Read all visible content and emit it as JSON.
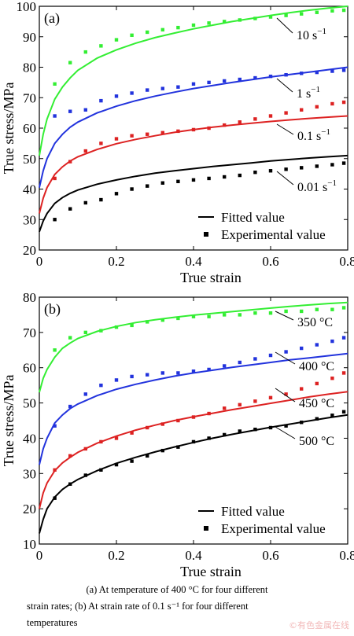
{
  "chart_data": [
    {
      "type": "line",
      "panel_label": "(a)",
      "xlabel": "True strain",
      "ylabel": "True stress/MPa",
      "xlim": [
        0,
        0.8
      ],
      "ylim": [
        20,
        100
      ],
      "xticks": [
        0,
        0.2,
        0.4,
        0.6,
        0.8
      ],
      "xtick_labels": [
        "0",
        "0.2",
        "0.4",
        "0.6",
        "0.8"
      ],
      "yticks": [
        20,
        30,
        40,
        50,
        60,
        70,
        80,
        90,
        100
      ],
      "ytick_labels": [
        "20",
        "30",
        "40",
        "50",
        "60",
        "70",
        "80",
        "90",
        "100"
      ],
      "legend": {
        "position": "bottom-right",
        "fitted_label": "Fitted value",
        "experimental_label": "Experimental value"
      },
      "exp_x": [
        0.04,
        0.08,
        0.12,
        0.16,
        0.2,
        0.24,
        0.28,
        0.32,
        0.36,
        0.4,
        0.44,
        0.48,
        0.52,
        0.56,
        0.6,
        0.64,
        0.68,
        0.72,
        0.76,
        0.79
      ],
      "series": [
        {
          "label": "10 s⁻¹",
          "color": "#33ee33",
          "fit_x": [
            0,
            0.01,
            0.02,
            0.04,
            0.06,
            0.08,
            0.1,
            0.15,
            0.2,
            0.25,
            0.3,
            0.35,
            0.4,
            0.45,
            0.5,
            0.55,
            0.6,
            0.65,
            0.7,
            0.75,
            0.8
          ],
          "fit_y": [
            51,
            58,
            63,
            69.5,
            73.5,
            76.5,
            79,
            83,
            85.7,
            87.9,
            89.7,
            91.2,
            92.6,
            93.8,
            95,
            96,
            97,
            97.9,
            98.7,
            99.4,
            100
          ],
          "exp_y": [
            74.5,
            81.5,
            85,
            87,
            89,
            90.5,
            91.5,
            92.3,
            93,
            93.8,
            94.5,
            95,
            95.5,
            96,
            96.5,
            97,
            97.5,
            98,
            98.5,
            98.7
          ]
        },
        {
          "label": "1 s⁻¹",
          "color": "#2233dd",
          "fit_x": [
            0,
            0.01,
            0.02,
            0.04,
            0.06,
            0.08,
            0.1,
            0.15,
            0.2,
            0.25,
            0.3,
            0.35,
            0.4,
            0.45,
            0.5,
            0.55,
            0.6,
            0.65,
            0.7,
            0.75,
            0.8
          ],
          "fit_y": [
            40.5,
            46,
            50,
            55,
            58,
            60.3,
            62,
            65,
            67.2,
            69,
            70.5,
            71.8,
            73,
            74,
            75,
            75.9,
            76.8,
            77.6,
            78.4,
            79.2,
            80
          ],
          "exp_y": [
            64,
            65.5,
            66,
            69,
            70.5,
            71.5,
            72.5,
            73,
            73.5,
            74.5,
            75,
            75.5,
            76,
            76.5,
            77,
            77.5,
            78,
            78.3,
            78.7,
            79
          ]
        },
        {
          "label": "0.1 s⁻¹",
          "color": "#dd2222",
          "fit_x": [
            0,
            0.01,
            0.02,
            0.04,
            0.06,
            0.08,
            0.1,
            0.15,
            0.2,
            0.25,
            0.3,
            0.35,
            0.4,
            0.45,
            0.5,
            0.55,
            0.6,
            0.65,
            0.7,
            0.75,
            0.8
          ],
          "fit_y": [
            32,
            37,
            40.5,
            44.8,
            47.3,
            49.2,
            50.6,
            53,
            54.9,
            56.3,
            57.5,
            58.6,
            59.5,
            60.3,
            61,
            61.6,
            62.2,
            62.7,
            63.2,
            63.6,
            64
          ],
          "exp_y": [
            43.5,
            49,
            52.5,
            55,
            56.5,
            57.5,
            58,
            58.5,
            59,
            59.5,
            60,
            61,
            62,
            63,
            64,
            65,
            66,
            67,
            68,
            68.5
          ]
        },
        {
          "label": "0.01 s⁻¹",
          "color": "#000000",
          "fit_x": [
            0,
            0.01,
            0.02,
            0.04,
            0.06,
            0.08,
            0.1,
            0.15,
            0.2,
            0.25,
            0.3,
            0.35,
            0.4,
            0.45,
            0.5,
            0.55,
            0.6,
            0.65,
            0.7,
            0.75,
            0.8
          ],
          "fit_y": [
            26,
            29.5,
            32,
            35.3,
            37.2,
            38.6,
            39.7,
            41.6,
            43,
            44.2,
            45.2,
            46,
            46.7,
            47.4,
            48,
            48.6,
            49.2,
            49.7,
            50.2,
            50.6,
            51
          ],
          "exp_y": [
            30,
            33.5,
            35.5,
            36.5,
            38.5,
            40,
            41,
            42,
            42.5,
            43,
            43.5,
            44,
            44.5,
            45.5,
            46,
            46.5,
            47,
            47.5,
            48,
            48.5
          ]
        }
      ]
    },
    {
      "type": "line",
      "panel_label": "(b)",
      "xlabel": "True strain",
      "ylabel": "True stress/MPa",
      "xlim": [
        0,
        0.8
      ],
      "ylim": [
        10,
        80
      ],
      "xticks": [
        0,
        0.2,
        0.4,
        0.6,
        0.8
      ],
      "xtick_labels": [
        "0",
        "0.2",
        "0.4",
        "0.6",
        "0.8"
      ],
      "yticks": [
        10,
        20,
        30,
        40,
        50,
        60,
        70,
        80
      ],
      "ytick_labels": [
        "10",
        "20",
        "30",
        "40",
        "50",
        "60",
        "70",
        "80"
      ],
      "legend": {
        "position": "bottom-right",
        "fitted_label": "Fitted value",
        "experimental_label": "Experimental value"
      },
      "exp_x": [
        0.04,
        0.08,
        0.12,
        0.16,
        0.2,
        0.24,
        0.28,
        0.32,
        0.36,
        0.4,
        0.44,
        0.48,
        0.52,
        0.56,
        0.6,
        0.64,
        0.68,
        0.72,
        0.76,
        0.79
      ],
      "series": [
        {
          "label": "350 °C",
          "color": "#33ee33",
          "fit_x": [
            0,
            0.01,
            0.02,
            0.04,
            0.06,
            0.08,
            0.1,
            0.15,
            0.2,
            0.25,
            0.3,
            0.35,
            0.4,
            0.45,
            0.5,
            0.55,
            0.6,
            0.65,
            0.7,
            0.75,
            0.8
          ],
          "fit_y": [
            53,
            57,
            59.5,
            63,
            65.5,
            67,
            68.3,
            70.3,
            71.7,
            72.8,
            73.6,
            74.3,
            74.9,
            75.4,
            75.9,
            76.4,
            76.9,
            77.4,
            77.8,
            78.2,
            78.5
          ],
          "exp_y": [
            65,
            68.5,
            70,
            70.5,
            71.5,
            72,
            73,
            73.5,
            74,
            74.5,
            74.5,
            75,
            75,
            75.5,
            75.5,
            76,
            76,
            76.5,
            76.5,
            77
          ]
        },
        {
          "label": "400 °C",
          "color": "#2233dd",
          "fit_x": [
            0,
            0.01,
            0.02,
            0.04,
            0.06,
            0.08,
            0.1,
            0.15,
            0.2,
            0.25,
            0.3,
            0.35,
            0.4,
            0.45,
            0.5,
            0.55,
            0.6,
            0.65,
            0.7,
            0.75,
            0.8
          ],
          "fit_y": [
            32.5,
            37,
            40,
            44.3,
            46.6,
            48.4,
            49.7,
            52.1,
            53.9,
            55.3,
            56.5,
            57.6,
            58.5,
            59.3,
            60.1,
            60.8,
            61.5,
            62.2,
            62.8,
            63.4,
            64
          ],
          "exp_y": [
            43.5,
            49,
            52.5,
            55,
            56.5,
            57.5,
            58,
            58.5,
            58.5,
            59,
            59.5,
            60.5,
            61.5,
            62.5,
            63.5,
            64.5,
            65.5,
            66.5,
            67.5,
            68.5
          ]
        },
        {
          "label": "450 °C",
          "color": "#dd2222",
          "fit_x": [
            0,
            0.01,
            0.02,
            0.04,
            0.06,
            0.08,
            0.1,
            0.15,
            0.2,
            0.25,
            0.3,
            0.35,
            0.4,
            0.45,
            0.5,
            0.55,
            0.6,
            0.65,
            0.7,
            0.75,
            0.8
          ],
          "fit_y": [
            20,
            24.5,
            27.3,
            30.8,
            33,
            34.6,
            36,
            38.6,
            40.6,
            42.3,
            43.7,
            45,
            46.1,
            47.1,
            48.1,
            49,
            49.9,
            50.8,
            51.7,
            52.5,
            53.2
          ],
          "exp_y": [
            31,
            35,
            37,
            39,
            40,
            41.5,
            43,
            44,
            45,
            46,
            47,
            48.5,
            49.5,
            50.5,
            51.5,
            52.5,
            54,
            55.5,
            57,
            58.5
          ]
        },
        {
          "label": "500 °C",
          "color": "#000000",
          "fit_x": [
            0,
            0.01,
            0.02,
            0.04,
            0.06,
            0.08,
            0.1,
            0.15,
            0.2,
            0.25,
            0.3,
            0.35,
            0.4,
            0.45,
            0.5,
            0.55,
            0.6,
            0.65,
            0.7,
            0.75,
            0.8
          ],
          "fit_y": [
            13,
            17,
            20,
            23.3,
            25.5,
            27,
            28.3,
            30.8,
            32.9,
            34.6,
            36.1,
            37.5,
            38.8,
            40,
            41.1,
            42.1,
            43.1,
            44,
            44.9,
            45.8,
            46.6
          ],
          "exp_y": [
            23,
            27,
            29.5,
            31,
            32.5,
            33.5,
            35,
            36.5,
            37.5,
            39,
            40,
            41,
            42,
            42.5,
            43,
            43.5,
            44.5,
            45.5,
            46.5,
            47.5
          ]
        }
      ]
    }
  ],
  "caption": {
    "line1": "(a) At temperature of 400 °C for four different",
    "line2": "strain rates; (b) At strain rate of 0.1 s⁻¹ for four different",
    "line3": "temperatures"
  },
  "watermark": "©有色金属在线"
}
